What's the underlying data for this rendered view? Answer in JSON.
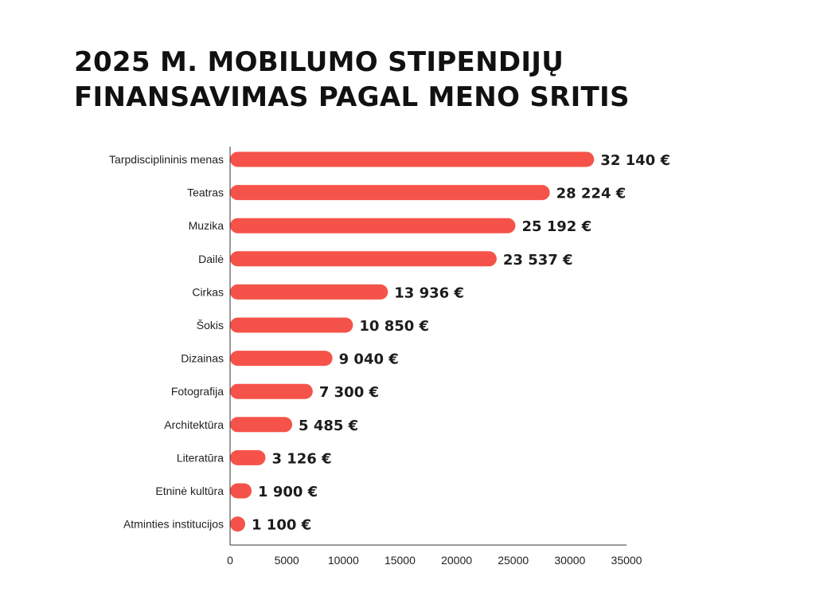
{
  "chart_data": {
    "type": "bar",
    "orientation": "horizontal",
    "title_lines": [
      "2025 M. MOBILUMO STIPENDIJŲ",
      "FINANSAVIMAS PAGAL MENO SRITIS"
    ],
    "categories": [
      "Tarpdisciplininis menas",
      "Teatras",
      "Muzika",
      "Dailė",
      "Cirkas",
      "Šokis",
      "Dizainas",
      "Fotografija",
      "Architektūra",
      "Literatūra",
      "Etninė kultūra",
      "Atminties institucijos"
    ],
    "values": [
      32140,
      28224,
      25192,
      23537,
      13936,
      10850,
      9040,
      7300,
      5485,
      3126,
      1900,
      1100
    ],
    "value_labels": [
      "32 140 €",
      "28 224 €",
      "25 192 €",
      "23 537 €",
      "13 936 €",
      "10 850 €",
      "9 040 €",
      "7 300 €",
      "5 485 €",
      "3 126 €",
      "1 900 €",
      "1 100 €"
    ],
    "x_ticks": [
      "0",
      "5000",
      "10000",
      "15000",
      "20000",
      "25000",
      "30000",
      "35000"
    ],
    "xlim": [
      0,
      35000
    ],
    "grid": false,
    "bar_color": "#f5534a",
    "axis_color": "#333333"
  }
}
